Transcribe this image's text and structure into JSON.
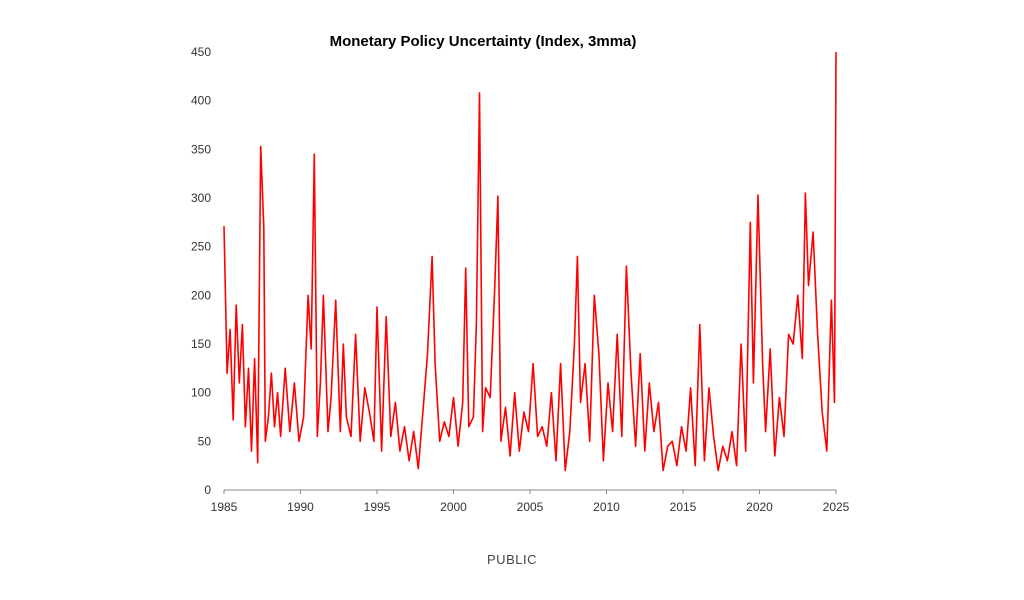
{
  "footer_text": "PUBLIC",
  "chart_data": {
    "type": "line",
    "title": "Monetary Policy Uncertainty (Index, 3mma)",
    "xlabel": "",
    "ylabel": "",
    "xlim": [
      1985,
      2025
    ],
    "ylim": [
      0,
      450
    ],
    "x_ticks": [
      "1985",
      "1990",
      "1995",
      "2000",
      "2005",
      "2010",
      "2015",
      "2020",
      "2025"
    ],
    "y_ticks": [
      "0",
      "50",
      "100",
      "150",
      "200",
      "250",
      "300",
      "350",
      "400",
      "450"
    ],
    "grid": false,
    "legend": "none",
    "color": "#ff0000",
    "series": [
      {
        "x": [
          1985.0,
          1985.2,
          1985.4,
          1985.6,
          1985.8,
          1986.0,
          1986.2,
          1986.4,
          1986.6,
          1986.8,
          1987.0,
          1987.2,
          1987.4,
          1987.6,
          1987.7,
          1987.9,
          1988.1,
          1988.3,
          1988.5,
          1988.7,
          1989.0,
          1989.3,
          1989.6,
          1989.9,
          1990.2,
          1990.5,
          1990.7,
          1990.9,
          1991.1,
          1991.3,
          1991.5,
          1991.8,
          1992.0,
          1992.3,
          1992.6,
          1992.8,
          1993.0,
          1993.3,
          1993.6,
          1993.9,
          1994.2,
          1994.5,
          1994.8,
          1995.0,
          1995.3,
          1995.6,
          1995.9,
          1996.2,
          1996.5,
          1996.8,
          1997.1,
          1997.4,
          1997.7,
          1998.0,
          1998.3,
          1998.6,
          1998.8,
          1999.1,
          1999.4,
          1999.7,
          2000.0,
          2000.3,
          2000.6,
          2000.8,
          2001.0,
          2001.3,
          2001.5,
          2001.7,
          2001.9,
          2002.1,
          2002.4,
          2002.7,
          2002.9,
          2003.1,
          2003.4,
          2003.7,
          2004.0,
          2004.3,
          2004.6,
          2004.9,
          2005.2,
          2005.5,
          2005.8,
          2006.1,
          2006.4,
          2006.7,
          2007.0,
          2007.3,
          2007.6,
          2007.9,
          2008.1,
          2008.3,
          2008.6,
          2008.9,
          2009.2,
          2009.5,
          2009.8,
          2010.1,
          2010.4,
          2010.7,
          2011.0,
          2011.3,
          2011.6,
          2011.9,
          2012.2,
          2012.5,
          2012.8,
          2013.1,
          2013.4,
          2013.7,
          2014.0,
          2014.3,
          2014.6,
          2014.9,
          2015.2,
          2015.5,
          2015.8,
          2016.1,
          2016.4,
          2016.7,
          2017.0,
          2017.3,
          2017.6,
          2017.9,
          2018.2,
          2018.5,
          2018.8,
          2019.1,
          2019.4,
          2019.6,
          2019.9,
          2020.2,
          2020.4,
          2020.7,
          2021.0,
          2021.3,
          2021.6,
          2021.9,
          2022.2,
          2022.5,
          2022.8,
          2023.0,
          2023.2,
          2023.5,
          2023.8,
          2024.1,
          2024.4,
          2024.7,
          2024.9,
          2025.0
        ],
        "y": [
          271,
          120,
          165,
          72,
          190,
          110,
          170,
          65,
          125,
          40,
          135,
          28,
          353,
          270,
          50,
          75,
          120,
          65,
          100,
          55,
          125,
          60,
          110,
          50,
          75,
          200,
          145,
          345,
          55,
          110,
          200,
          60,
          95,
          195,
          60,
          150,
          75,
          55,
          160,
          50,
          105,
          80,
          50,
          188,
          40,
          178,
          55,
          90,
          40,
          65,
          30,
          60,
          22,
          80,
          140,
          240,
          130,
          50,
          70,
          55,
          95,
          45,
          90,
          228,
          65,
          75,
          172,
          408,
          60,
          105,
          95,
          210,
          302,
          50,
          85,
          35,
          100,
          40,
          80,
          60,
          130,
          55,
          65,
          45,
          100,
          30,
          130,
          20,
          60,
          150,
          240,
          90,
          130,
          50,
          200,
          140,
          30,
          110,
          60,
          160,
          55,
          230,
          120,
          45,
          140,
          40,
          110,
          60,
          90,
          20,
          45,
          50,
          25,
          65,
          40,
          105,
          25,
          170,
          30,
          105,
          55,
          20,
          45,
          30,
          60,
          25,
          150,
          40,
          275,
          110,
          303,
          130,
          60,
          145,
          35,
          95,
          55,
          160,
          150,
          200,
          135,
          305,
          210,
          265,
          160,
          80,
          40,
          195,
          90,
          450
        ]
      }
    ]
  }
}
